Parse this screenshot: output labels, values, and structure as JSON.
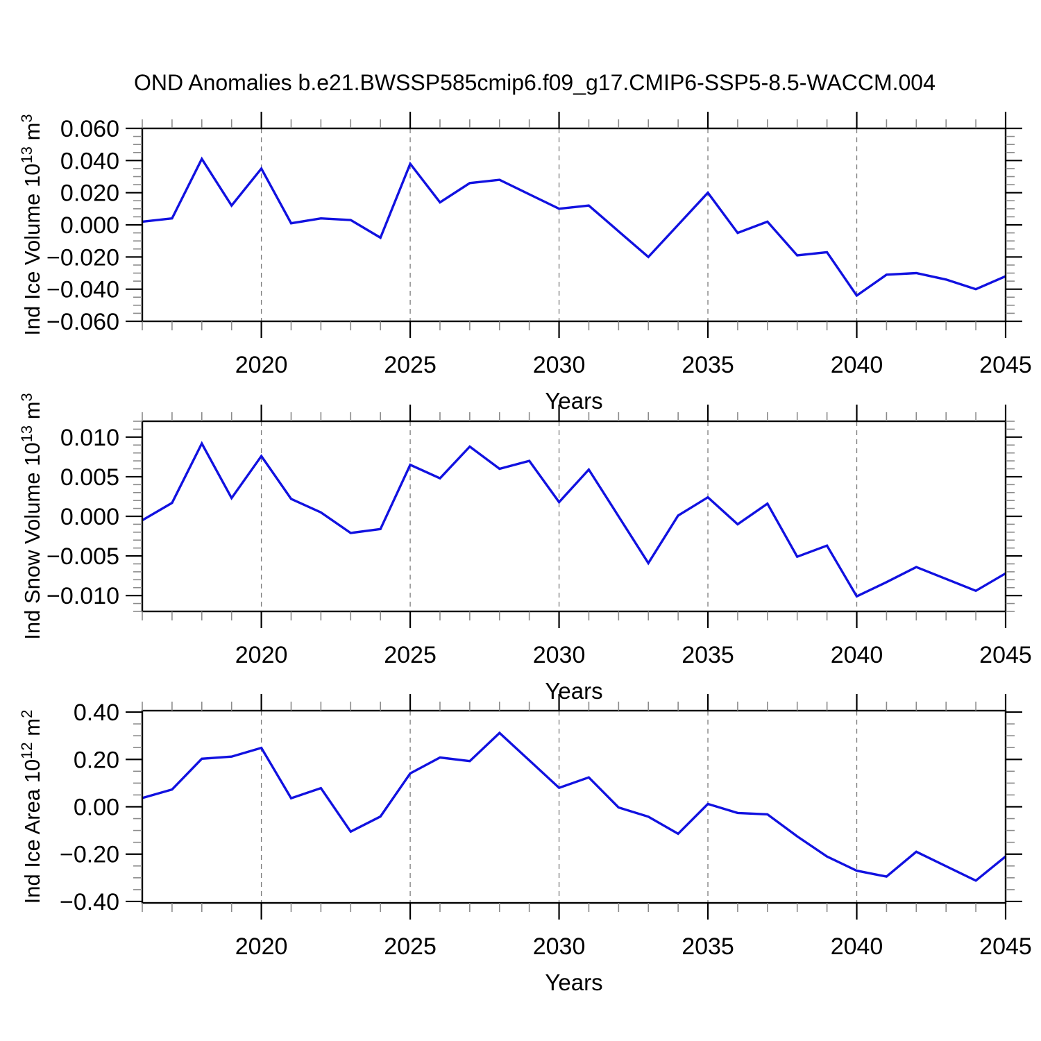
{
  "title": "OND Anomalies b.e21.BWSSP585cmip6.f09_g17.CMIP6-SSP5-8.5-WACCM.004",
  "xlabel": "Years",
  "x_tick_labels": [
    "2020",
    "2025",
    "2030",
    "2035",
    "2040",
    "2045"
  ],
  "colors": {
    "line": "#1111E0",
    "grid": "#7a7a7a",
    "axis": "#000000",
    "minor_tick": "#8a8a8a",
    "text": "#000000",
    "background": "#ffffff"
  },
  "chart_data": [
    {
      "name": "ice-volume",
      "type": "line",
      "title": "",
      "ylabel": "Ind Ice Volume 10^13 m^3",
      "ylabel_parts": [
        {
          "t": "Ind Ice Volume 10"
        },
        {
          "sup": "13"
        },
        {
          "t": " m"
        },
        {
          "sup": "3"
        }
      ],
      "xlabel": "Years",
      "x_start": 2016,
      "x_end": 2045,
      "x_major": [
        2020,
        2025,
        2030,
        2035,
        2040,
        2045
      ],
      "grid_years": [
        2020,
        2025,
        2030,
        2035,
        2040
      ],
      "ylim": [
        -0.06,
        0.06
      ],
      "y_major_values": [
        0.06,
        0.04,
        0.02,
        0,
        -0.02,
        -0.04,
        -0.06
      ],
      "y_major_labels": [
        "0.060",
        "0.040",
        "0.020",
        "0.000",
        "−0.020",
        "−0.040",
        "−0.060"
      ],
      "y_minor_step": 0.005,
      "grid": true,
      "legend": "none",
      "years": [
        2016,
        2017,
        2018,
        2019,
        2020,
        2021,
        2022,
        2023,
        2024,
        2025,
        2026,
        2027,
        2028,
        2029,
        2030,
        2031,
        2032,
        2033,
        2034,
        2035,
        2036,
        2037,
        2038,
        2039,
        2040,
        2041,
        2042,
        2043,
        2044,
        2045
      ],
      "values": [
        0.002,
        0.004,
        0.041,
        0.012,
        0.035,
        0.001,
        0.004,
        0.003,
        -0.008,
        0.038,
        0.014,
        0.026,
        0.028,
        0.019,
        0.01,
        0.012,
        -0.004,
        -0.02,
        0.0,
        0.02,
        -0.005,
        0.002,
        -0.019,
        -0.017,
        -0.044,
        -0.031,
        -0.03,
        -0.034,
        -0.04,
        -0.032
      ]
    },
    {
      "name": "snow-volume",
      "type": "line",
      "title": "",
      "ylabel": "Ind Snow Volume 10^13 m^3",
      "ylabel_parts": [
        {
          "t": "Ind Snow Volume 10"
        },
        {
          "sup": "13"
        },
        {
          "t": " m"
        },
        {
          "sup": "3"
        }
      ],
      "xlabel": "Years",
      "x_start": 2016,
      "x_end": 2045,
      "x_major": [
        2020,
        2025,
        2030,
        2035,
        2040,
        2045
      ],
      "grid_years": [
        2020,
        2025,
        2030,
        2035,
        2040
      ],
      "ylim": [
        -0.012,
        0.012
      ],
      "y_major_values": [
        0.01,
        0.005,
        0,
        -0.005,
        -0.01
      ],
      "y_major_labels": [
        "0.010",
        "0.005",
        "0.000",
        "−0.005",
        "−0.010"
      ],
      "y_minor_step": 0.001,
      "grid": true,
      "legend": "none",
      "years": [
        2016,
        2017,
        2018,
        2019,
        2020,
        2021,
        2022,
        2023,
        2024,
        2025,
        2026,
        2027,
        2028,
        2029,
        2030,
        2031,
        2032,
        2033,
        2034,
        2035,
        2036,
        2037,
        2038,
        2039,
        2040,
        2041,
        2042,
        2043,
        2044,
        2045
      ],
      "values": [
        -0.0005,
        0.0017,
        0.0092,
        0.0023,
        0.0076,
        0.0022,
        0.0005,
        -0.0021,
        -0.0016,
        0.0065,
        0.0048,
        0.0088,
        0.006,
        0.007,
        0.0018,
        0.0059,
        0.0,
        -0.0059,
        0.0001,
        0.0024,
        -0.001,
        0.0016,
        -0.0051,
        -0.0037,
        -0.0101,
        -0.0083,
        -0.0064,
        -0.0079,
        -0.0094,
        -0.0072
      ]
    },
    {
      "name": "ice-area",
      "type": "line",
      "title": "",
      "ylabel": "Ind Ice Area 10^12 m^2",
      "ylabel_parts": [
        {
          "t": "Ind Ice Area 10"
        },
        {
          "sup": "12"
        },
        {
          "t": " m"
        },
        {
          "sup": "2"
        }
      ],
      "xlabel": "Years",
      "x_start": 2016,
      "x_end": 2045,
      "x_major": [
        2020,
        2025,
        2030,
        2035,
        2040,
        2045
      ],
      "grid_years": [
        2020,
        2025,
        2030,
        2035,
        2040
      ],
      "ylim": [
        -0.406,
        0.406
      ],
      "y_major_values": [
        0.4,
        0.2,
        0,
        -0.2,
        -0.4
      ],
      "y_major_labels": [
        "0.40",
        "0.20",
        "0.00",
        "−0.20",
        "−0.40"
      ],
      "y_minor_step": 0.05,
      "grid": true,
      "legend": "none",
      "years": [
        2016,
        2017,
        2018,
        2019,
        2020,
        2021,
        2022,
        2023,
        2024,
        2025,
        2026,
        2027,
        2028,
        2029,
        2030,
        2031,
        2032,
        2033,
        2034,
        2035,
        2036,
        2037,
        2038,
        2039,
        2040,
        2041,
        2042,
        2043,
        2044,
        2045
      ],
      "values": [
        0.037,
        0.073,
        0.203,
        0.212,
        0.249,
        0.036,
        0.079,
        -0.105,
        -0.041,
        0.141,
        0.208,
        0.193,
        0.312,
        0.196,
        0.08,
        0.124,
        -0.003,
        -0.042,
        -0.114,
        0.012,
        -0.026,
        -0.032,
        -0.125,
        -0.21,
        -0.27,
        -0.295,
        -0.19,
        -0.251,
        -0.312,
        -0.21
      ]
    }
  ]
}
